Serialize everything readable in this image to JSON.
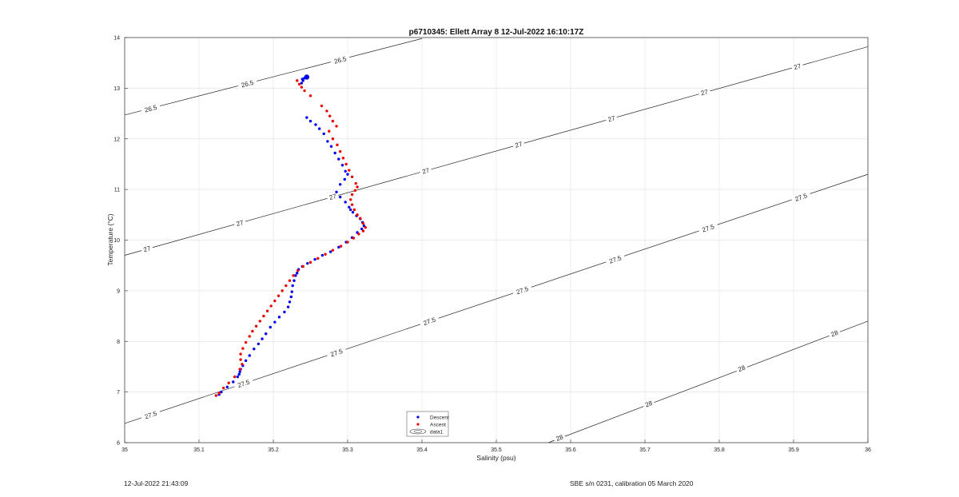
{
  "footer": {
    "left": "12-Jul-2022 21:43:09",
    "right": "SBE s/n 0231, calibration 05 March 2020"
  },
  "chart_data": {
    "type": "scatter",
    "title": "p6710345: Ellett Array 8 12-Jul-2022 16:10:17Z",
    "xlabel": "Salinity (psu)",
    "ylabel": "Temperature (°C)",
    "xlim": [
      35,
      36
    ],
    "ylim": [
      6,
      14
    ],
    "xticks": [
      "35",
      "35.1",
      "35.2",
      "35.3",
      "35.4",
      "35.5",
      "35.6",
      "35.7",
      "35.8",
      "35.9",
      "36"
    ],
    "yticks": [
      "6",
      "7",
      "8",
      "9",
      "10",
      "11",
      "12",
      "13",
      "14"
    ],
    "grid": true,
    "legend_position": "bottom-center",
    "legend": [
      "Descent",
      "Ascent",
      "data1"
    ],
    "colors": {
      "descent": "#0000ee",
      "ascent": "#ee0000",
      "contour": "#222222",
      "grid": "#e4e4e4"
    },
    "series": [
      {
        "name": "Descent",
        "marker": "dot",
        "points": [
          [
            35.245,
            13.22
          ],
          [
            35.242,
            13.2
          ],
          [
            35.239,
            13.18
          ],
          [
            35.24,
            13.15
          ],
          [
            35.238,
            13.1
          ],
          [
            35.245,
            12.42
          ],
          [
            35.25,
            12.35
          ],
          [
            35.257,
            12.28
          ],
          [
            35.262,
            12.2
          ],
          [
            35.268,
            12.1
          ],
          [
            35.273,
            11.95
          ],
          [
            35.278,
            11.85
          ],
          [
            35.283,
            11.72
          ],
          [
            35.288,
            11.6
          ],
          [
            35.293,
            11.48
          ],
          [
            35.297,
            11.36
          ],
          [
            35.3,
            11.3
          ],
          [
            35.296,
            11.2
          ],
          [
            35.29,
            11.1
          ],
          [
            35.285,
            10.95
          ],
          [
            35.29,
            10.85
          ],
          [
            35.297,
            10.75
          ],
          [
            35.302,
            10.65
          ],
          [
            35.304,
            10.6
          ],
          [
            35.307,
            10.55
          ],
          [
            35.312,
            10.48
          ],
          [
            35.317,
            10.42
          ],
          [
            35.32,
            10.35
          ],
          [
            35.322,
            10.28
          ],
          [
            35.319,
            10.22
          ],
          [
            35.313,
            10.15
          ],
          [
            35.306,
            10.05
          ],
          [
            35.298,
            9.96
          ],
          [
            35.288,
            9.86
          ],
          [
            35.277,
            9.77
          ],
          [
            35.266,
            9.7
          ],
          [
            35.256,
            9.62
          ],
          [
            35.246,
            9.54
          ],
          [
            35.239,
            9.48
          ],
          [
            35.234,
            9.42
          ],
          [
            35.232,
            9.35
          ],
          [
            35.23,
            9.3
          ],
          [
            35.228,
            9.2
          ],
          [
            35.226,
            9.1
          ],
          [
            35.225,
            8.98
          ],
          [
            35.224,
            8.88
          ],
          [
            35.222,
            8.78
          ],
          [
            35.22,
            8.68
          ],
          [
            35.215,
            8.58
          ],
          [
            35.208,
            8.48
          ],
          [
            35.202,
            8.38
          ],
          [
            35.196,
            8.28
          ],
          [
            35.19,
            8.15
          ],
          [
            35.185,
            8.05
          ],
          [
            35.18,
            7.95
          ],
          [
            35.174,
            7.85
          ],
          [
            35.168,
            7.72
          ],
          [
            35.163,
            7.62
          ],
          [
            35.159,
            7.52
          ],
          [
            35.156,
            7.45
          ],
          [
            35.155,
            7.4
          ],
          [
            35.154,
            7.35
          ],
          [
            35.152,
            7.3
          ],
          [
            35.146,
            7.2
          ],
          [
            35.138,
            7.1
          ],
          [
            35.13,
            7.0
          ],
          [
            35.127,
            6.95
          ]
        ]
      },
      {
        "name": "Ascent",
        "marker": "dot",
        "points": [
          [
            35.232,
            13.15
          ],
          [
            35.235,
            13.08
          ],
          [
            35.238,
            13.02
          ],
          [
            35.242,
            12.95
          ],
          [
            35.25,
            12.85
          ],
          [
            35.265,
            12.65
          ],
          [
            35.272,
            12.55
          ],
          [
            35.276,
            12.45
          ],
          [
            35.28,
            12.35
          ],
          [
            35.285,
            12.25
          ],
          [
            35.275,
            12.15
          ],
          [
            35.28,
            12.0
          ],
          [
            35.286,
            11.88
          ],
          [
            35.29,
            11.75
          ],
          [
            35.294,
            11.62
          ],
          [
            35.298,
            11.5
          ],
          [
            35.302,
            11.38
          ],
          [
            35.306,
            11.25
          ],
          [
            35.311,
            11.12
          ],
          [
            35.313,
            11.05
          ],
          [
            35.31,
            10.98
          ],
          [
            35.306,
            10.9
          ],
          [
            35.304,
            10.8
          ],
          [
            35.306,
            10.7
          ],
          [
            35.309,
            10.6
          ],
          [
            35.313,
            10.5
          ],
          [
            35.317,
            10.43
          ],
          [
            35.321,
            10.33
          ],
          [
            35.324,
            10.25
          ],
          [
            35.321,
            10.18
          ],
          [
            35.315,
            10.12
          ],
          [
            35.308,
            10.04
          ],
          [
            35.3,
            9.96
          ],
          [
            35.291,
            9.88
          ],
          [
            35.28,
            9.8
          ],
          [
            35.27,
            9.72
          ],
          [
            35.26,
            9.64
          ],
          [
            35.25,
            9.56
          ],
          [
            35.24,
            9.48
          ],
          [
            35.233,
            9.4
          ],
          [
            35.227,
            9.3
          ],
          [
            35.222,
            9.2
          ],
          [
            35.217,
            9.1
          ],
          [
            35.212,
            9.0
          ],
          [
            35.207,
            8.9
          ],
          [
            35.202,
            8.8
          ],
          [
            35.197,
            8.7
          ],
          [
            35.192,
            8.6
          ],
          [
            35.187,
            8.5
          ],
          [
            35.182,
            8.4
          ],
          [
            35.177,
            8.3
          ],
          [
            35.172,
            8.2
          ],
          [
            35.168,
            8.1
          ],
          [
            35.163,
            7.98
          ],
          [
            35.159,
            7.86
          ],
          [
            35.156,
            7.75
          ],
          [
            35.156,
            7.64
          ],
          [
            35.158,
            7.55
          ],
          [
            35.155,
            7.45
          ],
          [
            35.148,
            7.3
          ],
          [
            35.14,
            7.18
          ],
          [
            35.133,
            7.08
          ],
          [
            35.127,
            6.98
          ],
          [
            35.123,
            6.93
          ]
        ]
      }
    ],
    "contours": [
      {
        "label": "26.5",
        "points": [
          [
            35.0,
            12.47
          ],
          [
            35.4,
            13.98
          ]
        ],
        "label_positions": [
          [
            35.035,
            12.6
          ],
          [
            35.165,
            13.09
          ],
          [
            35.29,
            13.56
          ]
        ]
      },
      {
        "label": "27",
        "points": [
          [
            35.0,
            9.7
          ],
          [
            36.0,
            13.82
          ]
        ],
        "label_positions": [
          [
            35.03,
            9.83
          ],
          [
            35.155,
            10.34
          ],
          [
            35.28,
            10.86
          ],
          [
            35.405,
            11.37
          ],
          [
            35.53,
            11.89
          ],
          [
            35.655,
            12.4
          ],
          [
            35.78,
            12.92
          ],
          [
            35.905,
            13.43
          ]
        ]
      },
      {
        "label": "27.5",
        "points": [
          [
            35.0,
            6.38
          ],
          [
            36.0,
            11.3
          ]
        ],
        "label_positions": [
          [
            35.035,
            6.55
          ],
          [
            35.16,
            7.17
          ],
          [
            35.285,
            7.78
          ],
          [
            35.41,
            8.4
          ],
          [
            35.535,
            9.01
          ],
          [
            35.66,
            9.62
          ],
          [
            35.785,
            10.24
          ],
          [
            35.91,
            10.85
          ]
        ]
      },
      {
        "label": "28",
        "points": [
          [
            35.57,
            6.0
          ],
          [
            36.0,
            8.4
          ]
        ],
        "label_positions": [
          [
            35.585,
            6.1
          ],
          [
            35.705,
            6.77
          ],
          [
            35.83,
            7.47
          ],
          [
            35.955,
            8.16
          ]
        ]
      }
    ]
  }
}
